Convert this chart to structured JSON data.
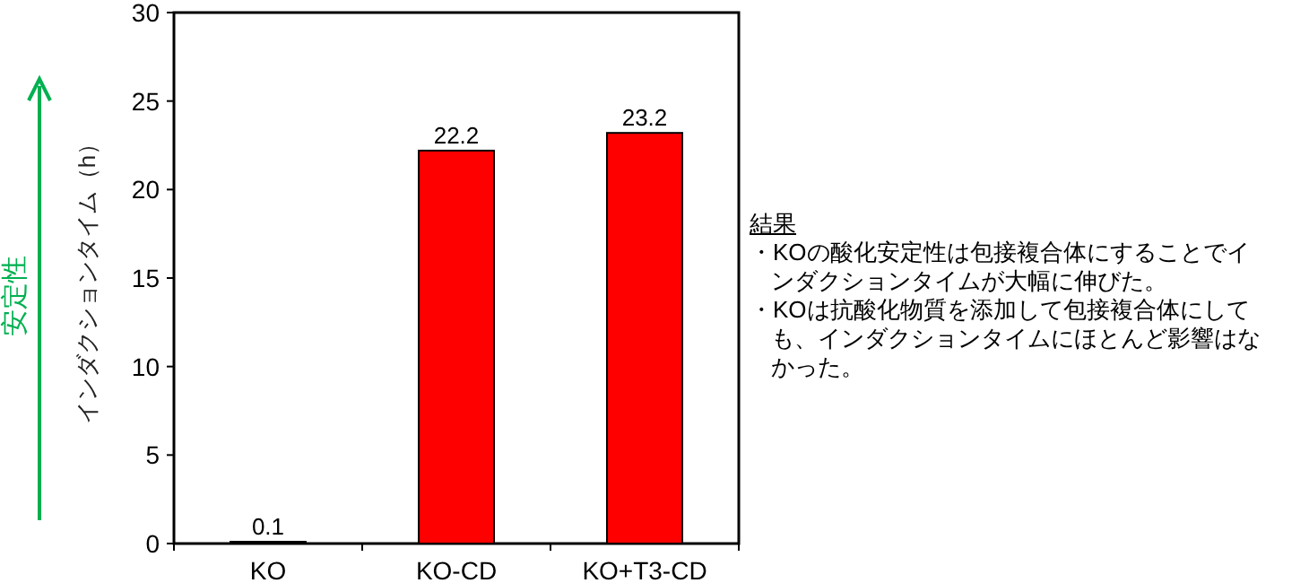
{
  "chart_data": {
    "type": "bar",
    "categories": [
      "KO",
      "KO-CD",
      "KO+T3-CD"
    ],
    "values": [
      0.1,
      22.2,
      23.2
    ],
    "color": "#ff0000",
    "ylabel": "インダクションタイム（h）",
    "ylim": [
      0,
      30
    ],
    "yticks": [
      0,
      5,
      10,
      15,
      20,
      25,
      30
    ],
    "data_labels": true,
    "annotations": [
      "安定性",
      "結果",
      "・KOの酸化安定性は包接複合体にすることでインダクションタイムが大幅に伸びた。",
      "・KOは抗酸化物質を添加して包接複合体にしても、インダクションタイムにほとんど影響はなかった。"
    ]
  }
}
